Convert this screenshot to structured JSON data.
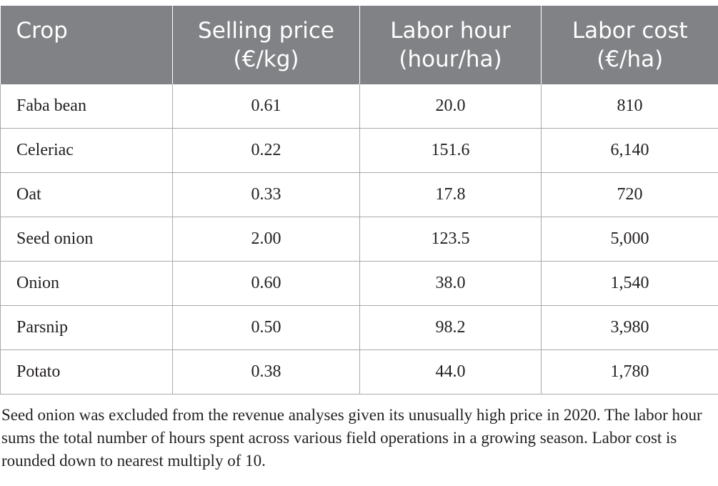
{
  "table": {
    "header_color": "#808285",
    "columns": [
      {
        "line1": "Crop",
        "line2": ""
      },
      {
        "line1": "Selling price",
        "line2": "(€/kg)"
      },
      {
        "line1": "Labor hour",
        "line2": "(hour/ha)"
      },
      {
        "line1": "Labor cost",
        "line2": "(€/ha)"
      }
    ],
    "rows": [
      [
        "Faba bean",
        "0.61",
        "20.0",
        "810"
      ],
      [
        "Celeriac",
        "0.22",
        "151.6",
        "6,140"
      ],
      [
        "Oat",
        "0.33",
        "17.8",
        "720"
      ],
      [
        "Seed onion",
        "2.00",
        "123.5",
        "5,000"
      ],
      [
        "Onion",
        "0.60",
        "38.0",
        "1,540"
      ],
      [
        "Parsnip",
        "0.50",
        "98.2",
        "3,980"
      ],
      [
        "Potato",
        "0.38",
        "44.0",
        "1,780"
      ]
    ]
  },
  "footnote": "Seed onion was excluded from the revenue analyses given its unusually high price in 2020. The labor hour sums the total number of hours spent across various field operations in a growing season. Labor cost is rounded down to nearest multiply of 10."
}
